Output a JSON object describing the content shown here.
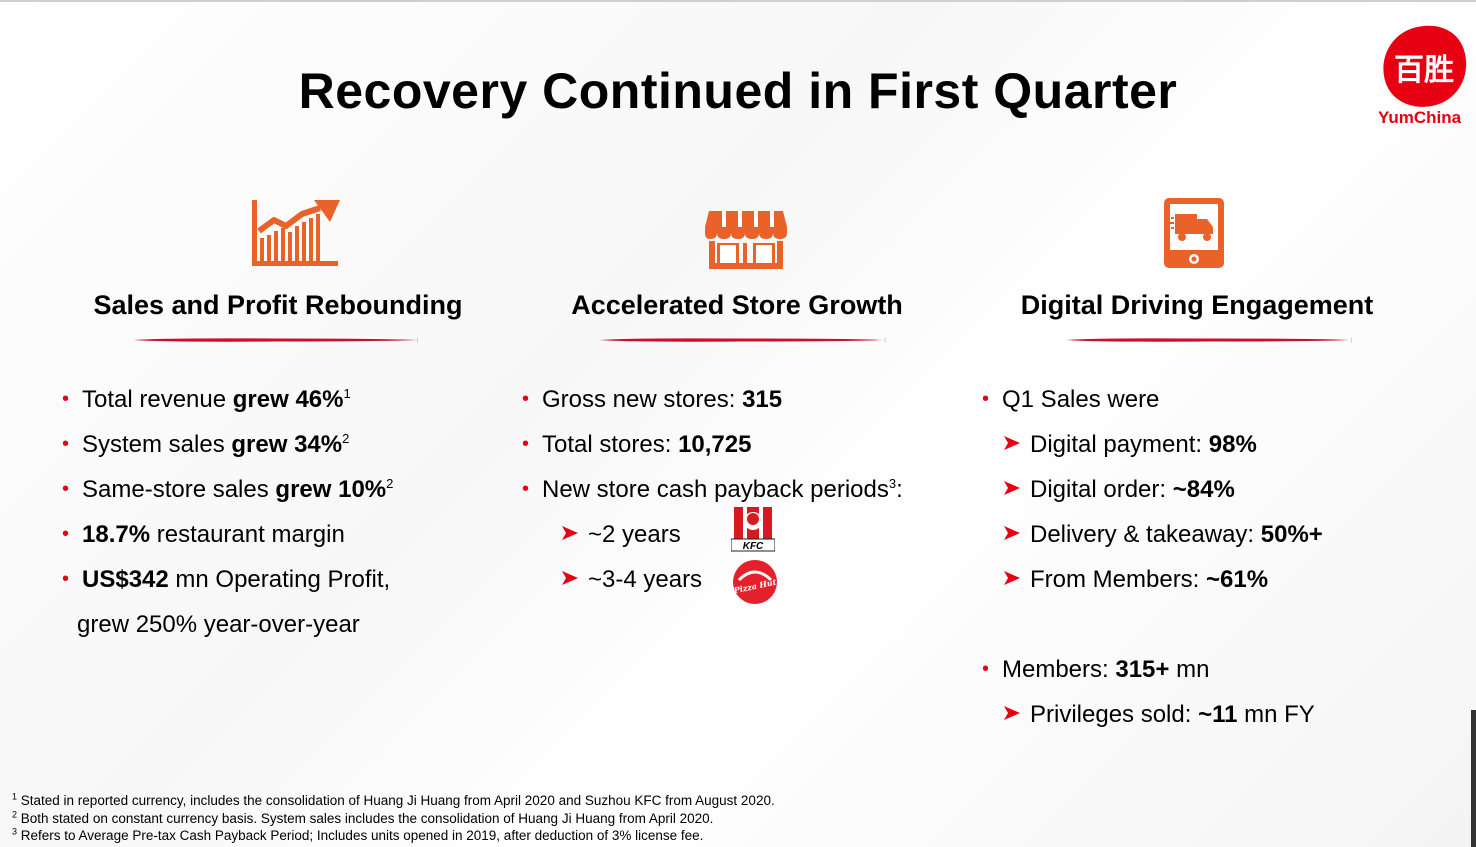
{
  "slide": {
    "title": "Recovery Continued in First Quarter",
    "brand": {
      "name": "YumChina",
      "logo_chars": "百胜",
      "color": "#e60012"
    }
  },
  "colors": {
    "accent": "#e8622a",
    "bullet": "#e60012",
    "underline": "#c8102e"
  },
  "columns": [
    {
      "heading": "Sales and Profit Rebounding",
      "icon": "growth-chart-icon",
      "bullets": [
        {
          "pre": "Total revenue ",
          "bold": "grew 46%",
          "post": "",
          "sup": "1"
        },
        {
          "pre": "System sales ",
          "bold": "grew 34%",
          "post": "",
          "sup": "2"
        },
        {
          "pre": "Same-store sales ",
          "bold": "grew 10%",
          "post": "",
          "sup": "2"
        },
        {
          "pre": "",
          "bold": "18.7%",
          "post": " restaurant margin",
          "sup": ""
        },
        {
          "pre": "",
          "bold": "US$342",
          "post": " mn Operating Profit,",
          "sup": ""
        }
      ],
      "continuation": "grew 250% year-over-year"
    },
    {
      "heading": "Accelerated Store Growth",
      "icon": "storefront-icon",
      "bullets": [
        {
          "pre": "Gross new stores: ",
          "bold": "315",
          "post": "",
          "sup": ""
        },
        {
          "pre": "Total stores: ",
          "bold": "10,725",
          "post": "",
          "sup": ""
        },
        {
          "pre": "New store cash payback periods",
          "bold": "",
          "post": ":",
          "sup": "3"
        }
      ],
      "sub_items": [
        {
          "text": "~2 years",
          "brand_icon": "kfc-logo-icon",
          "brand_text": "KFC"
        },
        {
          "text": "~3-4 years",
          "brand_icon": "pizza-hut-logo-icon",
          "brand_text": "Pizza Hut"
        }
      ]
    },
    {
      "heading": "Digital Driving Engagement",
      "icon": "mobile-delivery-icon",
      "sales_label": "Q1 Sales were",
      "sales_items": [
        {
          "pre": "Digital payment: ",
          "bold": "98%",
          "post": ""
        },
        {
          "pre": "Digital order: ",
          "bold": "~84%",
          "post": ""
        },
        {
          "pre": "Delivery & takeaway: ",
          "bold": "50%+",
          "post": ""
        },
        {
          "pre": "From Members: ",
          "bold": "~61%",
          "post": ""
        }
      ],
      "members": {
        "pre": "Members: ",
        "bold": "315+",
        "post": " mn"
      },
      "privileges": {
        "pre": "Privileges sold: ",
        "bold": "~11",
        "post": " mn FY"
      }
    }
  ],
  "footnotes": [
    {
      "num": "1",
      "text": " Stated in reported currency, includes the consolidation of Huang Ji Huang from April 2020 and Suzhou KFC from August 2020."
    },
    {
      "num": "2",
      "text": " Both stated on constant currency basis. System sales includes the consolidation of Huang Ji Huang from April 2020."
    },
    {
      "num": "3",
      "text": " Refers to Average Pre-tax Cash Payback Period; Includes units opened in 2019, after deduction of 3% license fee."
    }
  ]
}
